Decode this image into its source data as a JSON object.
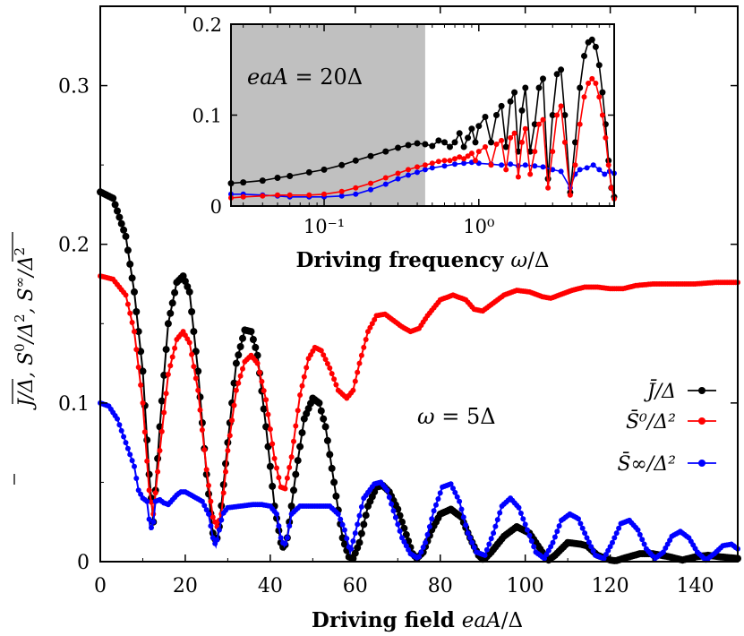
{
  "chart_data": [
    {
      "type": "line",
      "xlabel": "Driving field eaA/Δ",
      "ylabel": "J̄/Δ, S̄⁰/Δ², S̄∞/Δ²",
      "xlim": [
        0,
        150
      ],
      "ylim": [
        0,
        0.35
      ],
      "xticks": [
        "0",
        "20",
        "40",
        "60",
        "80",
        "100",
        "120",
        "140"
      ],
      "yticks": [
        "0",
        "0.1",
        "0.2",
        "0.3"
      ],
      "annotation": "ω = 5Δ",
      "legend_position": "right",
      "series": [
        {
          "name": "J̄/Δ",
          "color": "#000000",
          "x": [
            0,
            3,
            6,
            8,
            10,
            11.5,
            12.5,
            14,
            16,
            18,
            19.5,
            21,
            23,
            25,
            26.5,
            27.3,
            28,
            30,
            32,
            34,
            35.5,
            37,
            39,
            41,
            42.5,
            43.2,
            44,
            46,
            48,
            50,
            51.5,
            53,
            55,
            57,
            58.5,
            59.5,
            61,
            63,
            65,
            66.5,
            68,
            70,
            72,
            73.5,
            74.5,
            76,
            78,
            80,
            82.5,
            85,
            87,
            89,
            90.2,
            92,
            95,
            98,
            101,
            104,
            105.5,
            107,
            110,
            113,
            114.5,
            117,
            120,
            121.3,
            123,
            127,
            130,
            134,
            137,
            140,
            143,
            146,
            150
          ],
          "y": [
            0.233,
            0.229,
            0.205,
            0.17,
            0.12,
            0.055,
            0.025,
            0.085,
            0.15,
            0.176,
            0.18,
            0.17,
            0.12,
            0.055,
            0.018,
            0.012,
            0.022,
            0.075,
            0.125,
            0.146,
            0.145,
            0.13,
            0.085,
            0.035,
            0.012,
            0.008,
            0.015,
            0.055,
            0.09,
            0.103,
            0.1,
            0.085,
            0.05,
            0.015,
            0.003,
            0.002,
            0.012,
            0.035,
            0.047,
            0.048,
            0.044,
            0.033,
            0.017,
            0.005,
            0.002,
            0.006,
            0.02,
            0.03,
            0.033,
            0.028,
            0.015,
            0.004,
            0.001,
            0.006,
            0.016,
            0.022,
            0.018,
            0.006,
            0.001,
            0.004,
            0.012,
            0.011,
            0.01,
            0.004,
            0.001,
            0.0005,
            0.002,
            0.005,
            0.005,
            0.003,
            0.001,
            0.003,
            0.004,
            0.003,
            0.002
          ]
        },
        {
          "name": "S̄⁰/Δ²",
          "color": "#ff0000",
          "x": [
            0,
            3,
            6,
            8,
            10,
            11.5,
            12.5,
            14,
            16,
            18,
            19.5,
            21,
            23,
            25,
            26.5,
            27.5,
            28.5,
            30,
            32,
            34,
            35.5,
            37,
            39,
            41,
            42.5,
            43.5,
            45,
            47,
            49,
            50.5,
            52,
            54,
            56,
            58,
            59.5,
            61,
            63,
            65,
            67,
            69,
            71,
            73,
            75,
            77,
            80,
            83,
            86,
            88,
            90,
            92,
            95,
            98,
            101,
            104,
            106,
            108,
            111,
            114,
            117,
            120,
            123,
            126,
            130,
            135,
            140,
            145,
            150
          ],
          "y": [
            0.18,
            0.178,
            0.168,
            0.145,
            0.1,
            0.045,
            0.03,
            0.07,
            0.118,
            0.14,
            0.145,
            0.138,
            0.108,
            0.058,
            0.028,
            0.022,
            0.03,
            0.07,
            0.108,
            0.126,
            0.13,
            0.125,
            0.102,
            0.065,
            0.047,
            0.046,
            0.066,
            0.105,
            0.128,
            0.135,
            0.133,
            0.122,
            0.108,
            0.103,
            0.108,
            0.125,
            0.145,
            0.155,
            0.156,
            0.152,
            0.148,
            0.145,
            0.147,
            0.155,
            0.165,
            0.168,
            0.165,
            0.159,
            0.158,
            0.162,
            0.168,
            0.171,
            0.17,
            0.167,
            0.166,
            0.168,
            0.171,
            0.173,
            0.173,
            0.172,
            0.172,
            0.174,
            0.175,
            0.175,
            0.175,
            0.176,
            0.176
          ]
        },
        {
          "name": "S̄∞/Δ²",
          "color": "#0000ff",
          "x": [
            0,
            2,
            4,
            6,
            8,
            9,
            10,
            11,
            11.8,
            12.5,
            13,
            14,
            15,
            16,
            17,
            18,
            19,
            20,
            22,
            24,
            25.5,
            26.5,
            27.2,
            28,
            28.8,
            30,
            33,
            36,
            38,
            40,
            41.5,
            42.5,
            43.3,
            44,
            45,
            47,
            50,
            54,
            56,
            57.5,
            58.8,
            60,
            62,
            64.5,
            66,
            67.5,
            69,
            71,
            73,
            74.8,
            76.5,
            78.5,
            80.5,
            82.5,
            84.5,
            86.5,
            88.5,
            90.5,
            92.5,
            94.5,
            96.5,
            98.5,
            100.5,
            102.5,
            104.5,
            106.5,
            108.5,
            110.5,
            112.5,
            114.5,
            116.5,
            118.5,
            120.5,
            122.5,
            124.5,
            126.5,
            128.5,
            130.5,
            132.5,
            134.5,
            136.5,
            138.5,
            140.5,
            142.5,
            144.5,
            146.5,
            148.5,
            150
          ],
          "y": [
            0.1,
            0.098,
            0.09,
            0.075,
            0.06,
            0.045,
            0.04,
            0.038,
            0.02,
            0.025,
            0.038,
            0.039,
            0.037,
            0.036,
            0.039,
            0.042,
            0.044,
            0.044,
            0.041,
            0.038,
            0.03,
            0.015,
            0.01,
            0.02,
            0.03,
            0.034,
            0.035,
            0.036,
            0.036,
            0.035,
            0.03,
            0.015,
            0.01,
            0.015,
            0.03,
            0.035,
            0.035,
            0.035,
            0.03,
            0.02,
            0.006,
            0.018,
            0.04,
            0.049,
            0.05,
            0.045,
            0.032,
            0.015,
            0.005,
            0.002,
            0.012,
            0.032,
            0.047,
            0.049,
            0.038,
            0.018,
            0.006,
            0.004,
            0.018,
            0.035,
            0.04,
            0.034,
            0.02,
            0.006,
            0.002,
            0.012,
            0.026,
            0.03,
            0.027,
            0.015,
            0.004,
            0.002,
            0.012,
            0.024,
            0.026,
            0.02,
            0.008,
            0.002,
            0.006,
            0.016,
            0.019,
            0.015,
            0.006,
            0.001,
            0.005,
            0.01,
            0.011,
            0.008
          ]
        }
      ]
    },
    {
      "type": "line",
      "xlabel": "Driving frequency ω/Δ",
      "x_scale": "log",
      "xlim": [
        0.025,
        7.5
      ],
      "ylim": [
        0,
        0.2
      ],
      "xticks": [
        "10⁻¹",
        "10⁰"
      ],
      "yticks": [
        "0",
        "0.1",
        "0.2"
      ],
      "annotation": "eaA = 20Δ",
      "shaded_region_x": [
        0.025,
        0.45
      ],
      "shaded_region_color": "#c0c0c0",
      "series": [
        {
          "name": "J̄/Δ",
          "color": "#000000",
          "x": [
            0.025,
            0.03,
            0.04,
            0.05,
            0.06,
            0.08,
            0.1,
            0.13,
            0.16,
            0.2,
            0.25,
            0.3,
            0.35,
            0.4,
            0.45,
            0.5,
            0.55,
            0.6,
            0.65,
            0.7,
            0.75,
            0.8,
            0.85,
            0.9,
            0.95,
            1.0,
            1.1,
            1.2,
            1.3,
            1.4,
            1.5,
            1.6,
            1.7,
            1.8,
            1.9,
            2.0,
            2.15,
            2.3,
            2.45,
            2.6,
            2.8,
            3.0,
            3.2,
            3.4,
            3.6,
            3.9,
            4.2,
            4.5,
            4.8,
            5.1,
            5.4,
            5.7,
            6.0,
            6.3,
            6.6,
            6.9,
            7.2,
            7.5
          ],
          "y": [
            0.025,
            0.026,
            0.028,
            0.031,
            0.033,
            0.037,
            0.04,
            0.045,
            0.05,
            0.055,
            0.06,
            0.064,
            0.067,
            0.069,
            0.068,
            0.066,
            0.072,
            0.07,
            0.065,
            0.07,
            0.08,
            0.065,
            0.075,
            0.085,
            0.07,
            0.088,
            0.098,
            0.07,
            0.1,
            0.11,
            0.065,
            0.115,
            0.125,
            0.06,
            0.105,
            0.13,
            0.06,
            0.09,
            0.13,
            0.14,
            0.03,
            0.1,
            0.145,
            0.15,
            0.1,
            0.015,
            0.07,
            0.13,
            0.165,
            0.18,
            0.183,
            0.175,
            0.155,
            0.125,
            0.09,
            0.05,
            0.02,
            0.01
          ]
        },
        {
          "name": "S̄⁰/Δ²",
          "color": "#ff0000",
          "x": [
            0.025,
            0.03,
            0.04,
            0.05,
            0.06,
            0.08,
            0.1,
            0.13,
            0.16,
            0.2,
            0.25,
            0.3,
            0.35,
            0.4,
            0.45,
            0.5,
            0.55,
            0.6,
            0.65,
            0.7,
            0.75,
            0.8,
            0.85,
            0.9,
            0.95,
            1.0,
            1.1,
            1.2,
            1.3,
            1.4,
            1.5,
            1.6,
            1.7,
            1.8,
            1.9,
            2.0,
            2.15,
            2.3,
            2.45,
            2.6,
            2.8,
            3.0,
            3.2,
            3.4,
            3.6,
            3.9,
            4.2,
            4.5,
            4.8,
            5.1,
            5.4,
            5.7,
            6.0,
            6.3,
            6.6,
            6.9,
            7.2,
            7.5
          ],
          "y": [
            0.009,
            0.01,
            0.011,
            0.012,
            0.012,
            0.012,
            0.013,
            0.016,
            0.02,
            0.025,
            0.031,
            0.036,
            0.04,
            0.043,
            0.045,
            0.047,
            0.049,
            0.05,
            0.05,
            0.052,
            0.054,
            0.052,
            0.055,
            0.058,
            0.05,
            0.06,
            0.065,
            0.045,
            0.068,
            0.072,
            0.04,
            0.075,
            0.08,
            0.032,
            0.07,
            0.085,
            0.035,
            0.06,
            0.09,
            0.095,
            0.02,
            0.06,
            0.1,
            0.11,
            0.07,
            0.012,
            0.045,
            0.09,
            0.12,
            0.135,
            0.14,
            0.135,
            0.12,
            0.1,
            0.075,
            0.045,
            0.02,
            0.008
          ]
        },
        {
          "name": "S̄∞/Δ²",
          "color": "#0000ff",
          "x": [
            0.025,
            0.03,
            0.04,
            0.05,
            0.06,
            0.08,
            0.1,
            0.13,
            0.16,
            0.2,
            0.25,
            0.3,
            0.35,
            0.4,
            0.45,
            0.5,
            0.6,
            0.7,
            0.8,
            0.9,
            1.0,
            1.2,
            1.4,
            1.6,
            1.8,
            2.0,
            2.3,
            2.6,
            3.0,
            3.4,
            3.9,
            4.2,
            4.5,
            5.0,
            5.5,
            6.0,
            6.5,
            7.0,
            7.5
          ],
          "y": [
            0.013,
            0.013,
            0.012,
            0.011,
            0.01,
            0.01,
            0.01,
            0.011,
            0.013,
            0.018,
            0.024,
            0.03,
            0.034,
            0.037,
            0.04,
            0.042,
            0.044,
            0.046,
            0.047,
            0.048,
            0.047,
            0.046,
            0.045,
            0.046,
            0.044,
            0.045,
            0.044,
            0.043,
            0.04,
            0.038,
            0.02,
            0.035,
            0.04,
            0.042,
            0.045,
            0.04,
            0.035,
            0.038,
            0.036
          ]
        }
      ]
    }
  ]
}
